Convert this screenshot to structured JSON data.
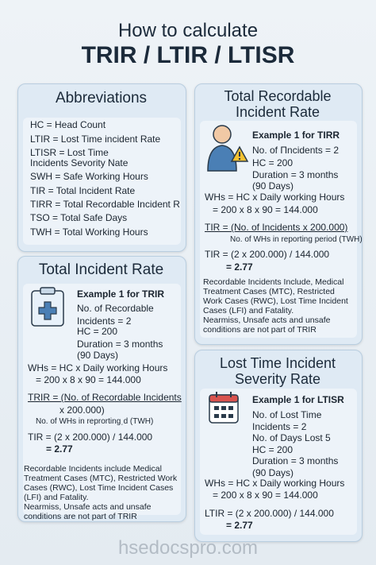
{
  "header": {
    "title": "How to calculate",
    "subtitle": "TRIR / LTIR / LTISR"
  },
  "abbreviations": {
    "title": "Abbreviations",
    "items": [
      "HC = Head Count",
      "LTIR = Lost Time incident Rate",
      "LTISR = Lost Time",
      "Incidents Sevority Nate",
      "SWH = Safe Working Hours",
      "TIR = Total Incident Rate",
      "TIRR = Total Recordable Incident  R",
      "TSO = Total Safe Days",
      "TWH = Total Working Hours"
    ]
  },
  "trir_panel": {
    "title": "Total Recordable Incident Rate",
    "example": "Example 1 for TIRR",
    "details": [
      "No. of Πncidents = 2",
      "HC = 200",
      "Duration = 3 months",
      "(90 Days)"
    ],
    "calculation": [
      "WHs = HC x Daily working Hours",
      "= 200 x 8 x 90 = 144.000"
    ],
    "formula": [
      "TIR = (No. of Incidents x 200.000)",
      "No. of WHs in reporting period (TWH)"
    ],
    "result": [
      "TIR = (2 x 200.000) / 144.000",
      "= 2.77"
    ],
    "notes": [
      "Recordable Incidents Include, Medical Treatment Cases (MTC), Restricted Work Cases (RWC), Lost Time Incident Cases (LFI) and Fatality.",
      "Nearmiss, Unsafe acts and unsafe conditions are not part of TRIR"
    ]
  },
  "tir_panel": {
    "title": "Total Incident Rate",
    "example": "Example 1 for TRIR",
    "details": [
      "No. of Recordable",
      "Incidents = 2",
      "HC = 200",
      "Duration = 3 months",
      "(90 Days)"
    ],
    "calculation": [
      "WHs = HC x Daily working Hours",
      "= 200 x 8 x 90 = 144.000"
    ],
    "formula": [
      "TRIR = (No. of Recordable Incidents",
      "x 200.000)",
      "No. of WHs in reprortingˌd (TWH)"
    ],
    "result": [
      "TIR = (2 x 200.000) / 144.000",
      "= 2.77"
    ],
    "notes": [
      "Recordable Incidents include Medical Treatment Cases (MTC), Restricted Work Cases (RWC), Lost Time Incident Cases (LFI) and Fatality.",
      "Nearmiss, Unsafe acts and unsafe conditions are not part of TRIR"
    ]
  },
  "ltisr_panel": {
    "title": "Lost Time Incident Severity Rate",
    "example": "Example 1 for LTISR",
    "details": [
      "No. of Lost Time",
      "Incidents = 2",
      "No. of Days Lost 5",
      "HC = 200",
      "Duration = 3 months",
      "(90 Days)"
    ],
    "calculation": [
      "WHs = HC x Daily working Hours",
      "= 200 x 8 x 90 = 144.000"
    ],
    "result": [
      "LTIR = (2 x 200.000) / 144.000",
      "= 2.77"
    ]
  },
  "footer": "hsedocspro.com"
}
